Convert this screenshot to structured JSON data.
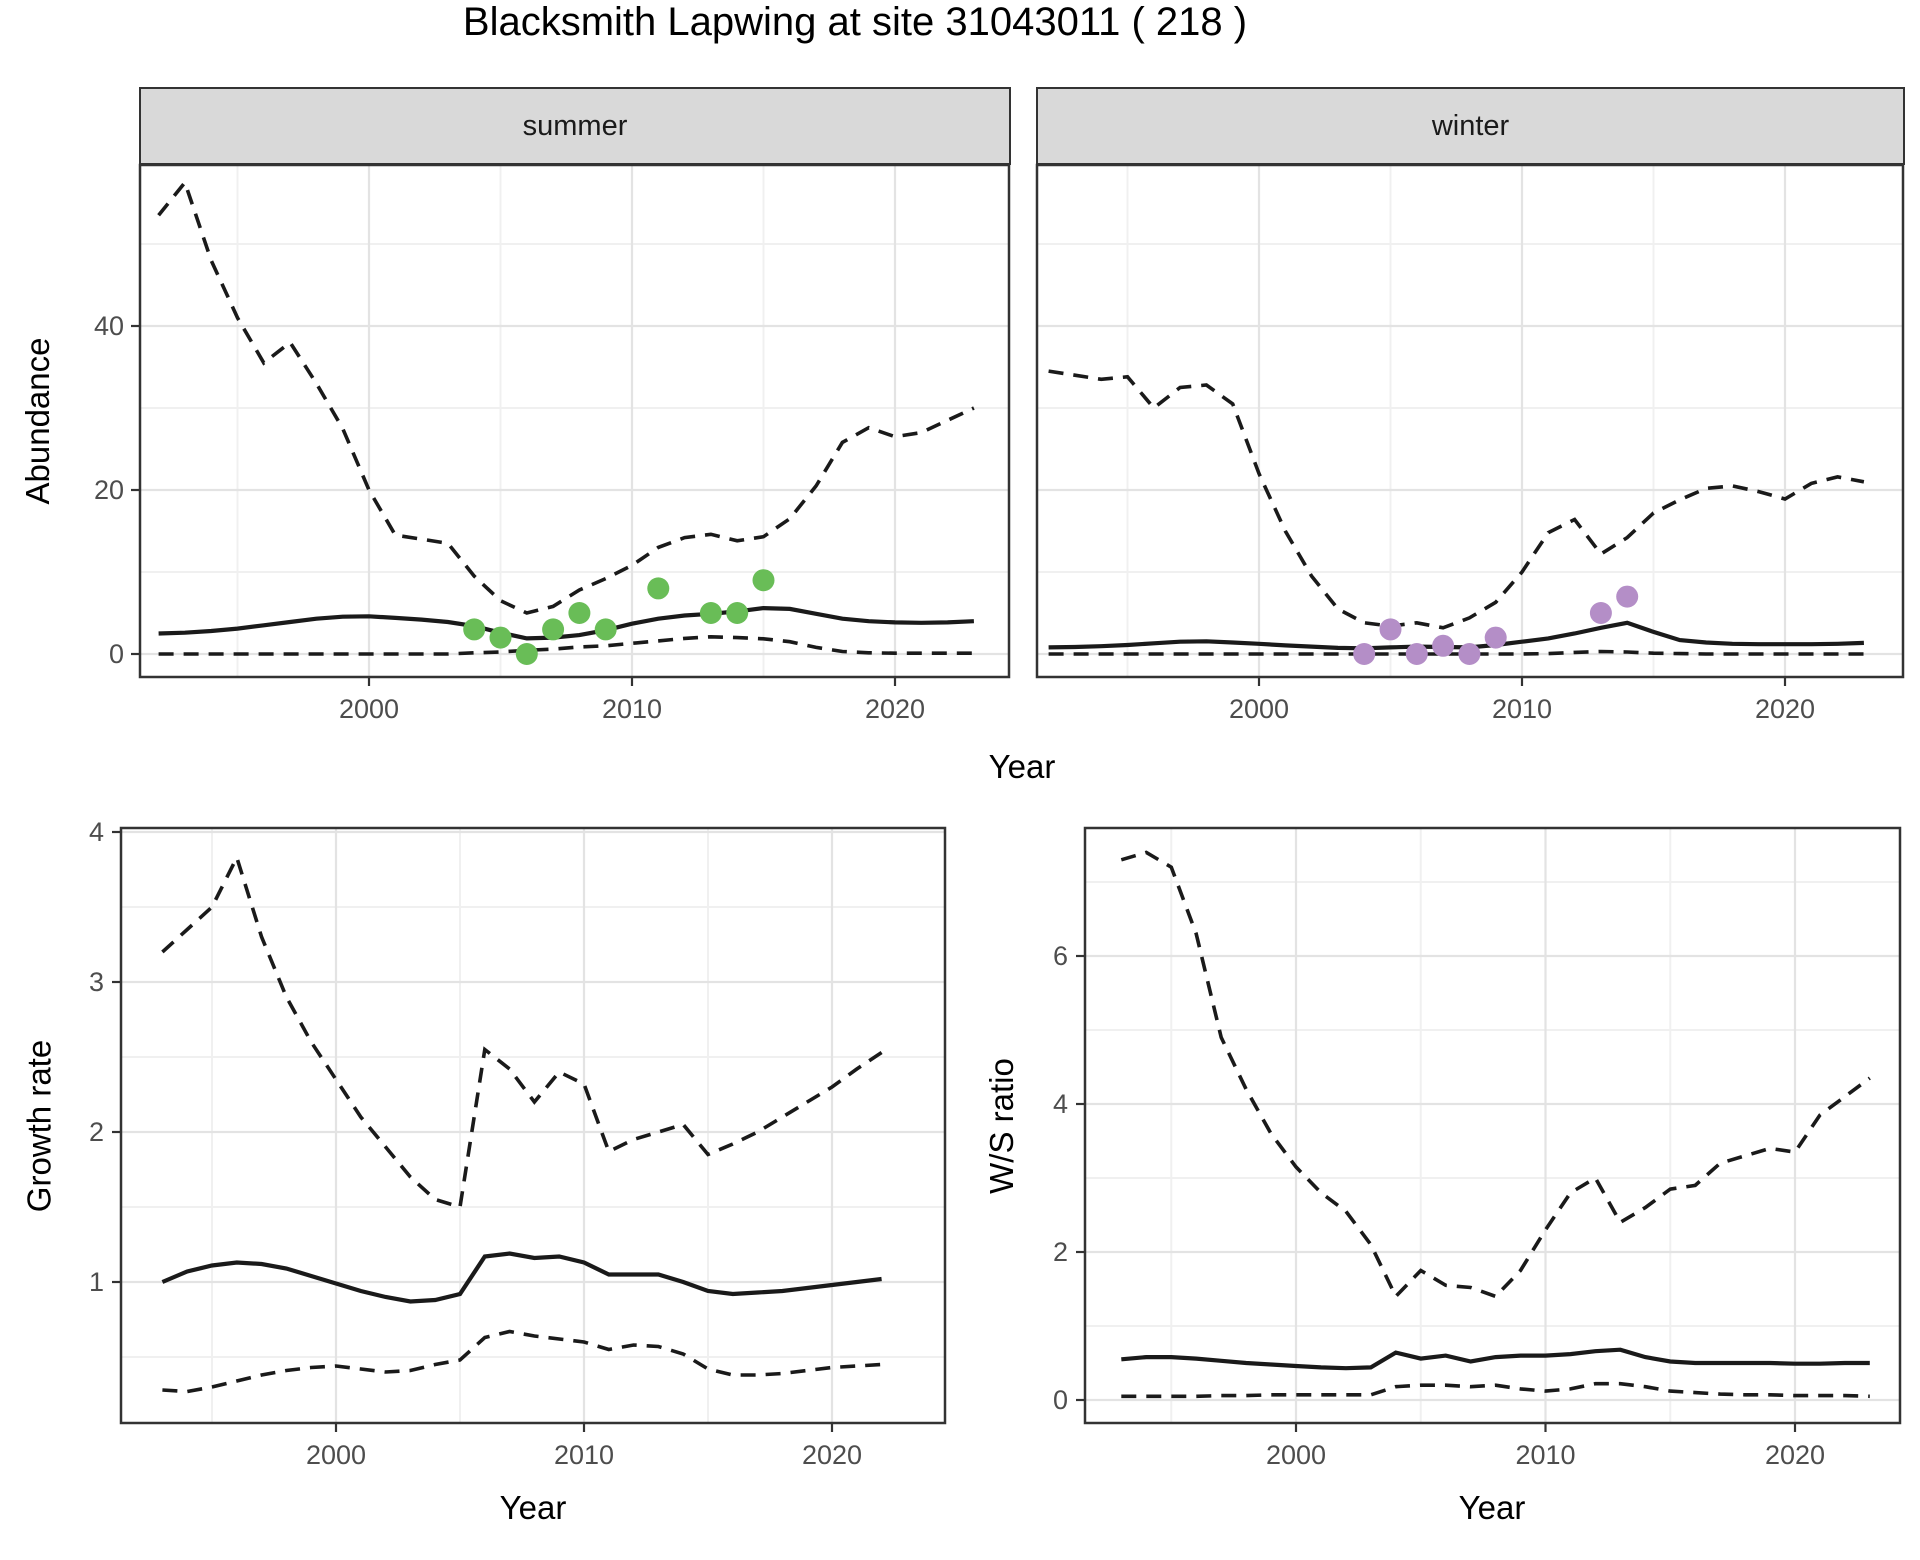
{
  "title": "Blacksmith Lapwing at site 31043011 ( 218 )",
  "facets": [
    "summer",
    "winter"
  ],
  "axis_titles": {
    "abundance": "Abundance",
    "year_top": "Year",
    "growth": "Growth rate",
    "year_bottom_left": "Year",
    "ws": "W/S ratio",
    "year_bottom_right": "Year"
  },
  "colors": {
    "summer_points": "#69bd57",
    "winter_points": "#b48ec7",
    "line": "#1a1a1a",
    "strip_bg": "#d9d9d9",
    "panel_border": "#333333",
    "grid_major": "#e3e3e3",
    "grid_minor": "#f0f0f0",
    "tick_text": "#4d4d4d"
  },
  "chart_data": [
    {
      "name": "abundance-summer",
      "type": "line",
      "facet": "summer",
      "title": "",
      "xlabel": "Year",
      "ylabel": "Abundance",
      "xlim": [
        1991.3,
        2024.3
      ],
      "ylim": [
        -2.8,
        59.6
      ],
      "x_ticks": [
        2000,
        2010,
        2020
      ],
      "y_ticks": [
        0,
        20,
        40
      ],
      "x_minor_gridlines": [
        1995,
        2005,
        2015
      ],
      "y_minor_gridlines": [
        10,
        30,
        50
      ],
      "line_styles": {
        "upper": "dashed",
        "median": "solid",
        "lower": "dashed"
      },
      "x": [
        1992,
        1993,
        1994,
        1995,
        1996,
        1997,
        1998,
        1999,
        2000,
        2001,
        2002,
        2003,
        2004,
        2005,
        2006,
        2007,
        2008,
        2009,
        2010,
        2011,
        2012,
        2013,
        2014,
        2015,
        2016,
        2017,
        2018,
        2019,
        2020,
        2021,
        2022,
        2023
      ],
      "upper": [
        53.5,
        57.5,
        48,
        41,
        35.5,
        38,
        33,
        27.5,
        20,
        14.5,
        14,
        13.5,
        9.5,
        6.5,
        5,
        5.8,
        7.8,
        9.2,
        10.8,
        13,
        14.2,
        14.6,
        13.8,
        14.3,
        16.5,
        20.5,
        25.8,
        27.6,
        26.5,
        27,
        28.5,
        30
      ],
      "median": [
        2.5,
        2.6,
        2.8,
        3.1,
        3.5,
        3.9,
        4.3,
        4.55,
        4.6,
        4.4,
        4.2,
        3.9,
        3.4,
        2.6,
        1.9,
        2.0,
        2.3,
        2.9,
        3.7,
        4.3,
        4.7,
        4.9,
        5.2,
        5.6,
        5.5,
        4.9,
        4.3,
        4.0,
        3.85,
        3.8,
        3.85,
        4.0
      ],
      "lower": [
        0,
        0,
        0,
        0,
        0,
        0,
        0,
        0,
        0,
        0,
        0,
        0,
        0.15,
        0.25,
        0.45,
        0.6,
        0.85,
        1.0,
        1.3,
        1.6,
        1.9,
        2.1,
        2.0,
        1.85,
        1.5,
        0.8,
        0.3,
        0.15,
        0.1,
        0.1,
        0.1,
        0.1
      ],
      "points": [
        [
          2004,
          3
        ],
        [
          2005,
          2
        ],
        [
          2006,
          0
        ],
        [
          2007,
          3
        ],
        [
          2008,
          5
        ],
        [
          2009,
          3
        ],
        [
          2011,
          8
        ],
        [
          2013,
          5
        ],
        [
          2014,
          5
        ],
        [
          2015,
          9
        ]
      ],
      "points_color_key": "summer_points"
    },
    {
      "name": "abundance-winter",
      "type": "line",
      "facet": "winter",
      "title": "",
      "xlabel": "Year",
      "ylabel": "Abundance",
      "xlim": [
        1991.3,
        2024.3
      ],
      "ylim": [
        -2.8,
        59.6
      ],
      "x_ticks": [
        2000,
        2010,
        2020
      ],
      "y_ticks": [],
      "x_minor_gridlines": [
        1995,
        2005,
        2015
      ],
      "y_minor_gridlines": [
        10,
        30,
        50
      ],
      "y_major_gridlines": [
        0,
        20,
        40
      ],
      "line_styles": {
        "upper": "dashed",
        "median": "solid",
        "lower": "dashed"
      },
      "x": [
        1992,
        1993,
        1994,
        1995,
        1996,
        1997,
        1998,
        1999,
        2000,
        2001,
        2002,
        2003,
        2004,
        2005,
        2006,
        2007,
        2008,
        2009,
        2010,
        2011,
        2012,
        2013,
        2014,
        2015,
        2016,
        2017,
        2018,
        2019,
        2020,
        2021,
        2022,
        2023
      ],
      "upper": [
        34.5,
        34,
        33.5,
        33.8,
        30,
        32.5,
        32.8,
        30.5,
        22,
        15,
        9.5,
        5.5,
        3.8,
        3.4,
        3.8,
        3.2,
        4.4,
        6.3,
        10,
        14.8,
        16.4,
        12.2,
        14.2,
        17.2,
        18.8,
        20.2,
        20.5,
        19.8,
        18.9,
        20.8,
        21.6,
        21
      ],
      "median": [
        0.8,
        0.85,
        0.95,
        1.1,
        1.3,
        1.5,
        1.55,
        1.4,
        1.25,
        1.05,
        0.9,
        0.75,
        0.7,
        0.8,
        0.9,
        0.85,
        0.8,
        1.1,
        1.5,
        1.9,
        2.5,
        3.2,
        3.8,
        2.7,
        1.7,
        1.4,
        1.25,
        1.2,
        1.2,
        1.2,
        1.25,
        1.35
      ],
      "lower": [
        0,
        0,
        0,
        0,
        0,
        0,
        0,
        0,
        0,
        0,
        0,
        0,
        0,
        0,
        0,
        0,
        0,
        0,
        0,
        0.05,
        0.2,
        0.3,
        0.25,
        0.1,
        0.05,
        0,
        0,
        0,
        0,
        0,
        0,
        0
      ],
      "points": [
        [
          2004,
          0
        ],
        [
          2005,
          3
        ],
        [
          2006,
          0
        ],
        [
          2007,
          1
        ],
        [
          2008,
          0
        ],
        [
          2009,
          2
        ],
        [
          2013,
          5
        ],
        [
          2014,
          7
        ]
      ],
      "points_color_key": "winter_points"
    },
    {
      "name": "growth-rate",
      "type": "line",
      "title": "",
      "xlabel": "Year",
      "ylabel": "Growth rate",
      "xlim": [
        1991.3,
        2024.6
      ],
      "ylim": [
        0.06,
        4.03
      ],
      "x_ticks": [
        2000,
        2010,
        2020
      ],
      "y_ticks": [
        1,
        2,
        3,
        4
      ],
      "x_minor_gridlines": [
        1995,
        2005,
        2015
      ],
      "y_minor_gridlines": [
        0.5,
        1.5,
        2.5,
        3.5
      ],
      "line_styles": {
        "upper": "dashed",
        "median": "solid",
        "lower": "dashed"
      },
      "x": [
        1993,
        1994,
        1995,
        1996,
        1997,
        1998,
        1999,
        2000,
        2001,
        2002,
        2003,
        2004,
        2005,
        2006,
        2007,
        2008,
        2009,
        2010,
        2011,
        2012,
        2013,
        2014,
        2015,
        2016,
        2017,
        2018,
        2019,
        2020,
        2021,
        2022
      ],
      "upper": [
        3.2,
        3.35,
        3.5,
        3.83,
        3.3,
        2.9,
        2.6,
        2.35,
        2.1,
        1.9,
        1.7,
        1.55,
        1.5,
        2.55,
        2.42,
        2.2,
        2.4,
        2.32,
        1.87,
        1.95,
        2.0,
        2.05,
        1.85,
        1.92,
        2.0,
        2.1,
        2.2,
        2.3,
        2.42,
        2.53
      ],
      "median": [
        1.0,
        1.07,
        1.11,
        1.13,
        1.12,
        1.09,
        1.04,
        0.99,
        0.94,
        0.9,
        0.87,
        0.88,
        0.92,
        1.17,
        1.19,
        1.16,
        1.17,
        1.13,
        1.05,
        1.05,
        1.05,
        1.0,
        0.94,
        0.92,
        0.93,
        0.94,
        0.96,
        0.98,
        1.0,
        1.02
      ],
      "lower": [
        0.28,
        0.27,
        0.3,
        0.34,
        0.38,
        0.41,
        0.43,
        0.44,
        0.42,
        0.4,
        0.41,
        0.45,
        0.48,
        0.63,
        0.67,
        0.64,
        0.62,
        0.6,
        0.55,
        0.58,
        0.57,
        0.52,
        0.42,
        0.38,
        0.38,
        0.39,
        0.41,
        0.43,
        0.44,
        0.45
      ],
      "points": []
    },
    {
      "name": "ws-ratio",
      "type": "line",
      "title": "",
      "xlabel": "Year",
      "ylabel": "W/S ratio",
      "xlim": [
        1991.5,
        2024.2
      ],
      "ylim": [
        -0.31,
        7.73
      ],
      "x_ticks": [
        2000,
        2010,
        2020
      ],
      "y_ticks": [
        0,
        2,
        4,
        6
      ],
      "x_minor_gridlines": [
        1995,
        2005,
        2015
      ],
      "y_minor_gridlines": [
        1,
        3,
        5,
        7
      ],
      "line_styles": {
        "upper": "dashed",
        "median": "solid",
        "lower": "dashed"
      },
      "x": [
        1993,
        1994,
        1995,
        1996,
        1997,
        1998,
        1999,
        2000,
        2001,
        2002,
        2003,
        2004,
        2005,
        2006,
        2007,
        2008,
        2009,
        2010,
        2011,
        2012,
        2013,
        2014,
        2015,
        2016,
        2017,
        2018,
        2019,
        2020,
        2021,
        2022,
        2023
      ],
      "upper": [
        7.3,
        7.4,
        7.2,
        6.3,
        4.9,
        4.2,
        3.6,
        3.15,
        2.8,
        2.55,
        2.1,
        1.4,
        1.75,
        1.55,
        1.52,
        1.4,
        1.75,
        2.3,
        2.8,
        3.0,
        2.4,
        2.6,
        2.85,
        2.9,
        3.2,
        3.3,
        3.4,
        3.35,
        3.85,
        4.1,
        4.35
      ],
      "median": [
        0.55,
        0.58,
        0.58,
        0.56,
        0.53,
        0.5,
        0.48,
        0.46,
        0.44,
        0.43,
        0.44,
        0.64,
        0.56,
        0.6,
        0.52,
        0.58,
        0.6,
        0.6,
        0.62,
        0.66,
        0.68,
        0.58,
        0.52,
        0.5,
        0.5,
        0.5,
        0.5,
        0.49,
        0.49,
        0.5,
        0.5
      ],
      "lower": [
        0.05,
        0.05,
        0.05,
        0.05,
        0.06,
        0.06,
        0.07,
        0.07,
        0.07,
        0.07,
        0.07,
        0.18,
        0.2,
        0.2,
        0.18,
        0.2,
        0.15,
        0.12,
        0.15,
        0.22,
        0.22,
        0.18,
        0.12,
        0.1,
        0.08,
        0.07,
        0.07,
        0.06,
        0.06,
        0.06,
        0.05
      ],
      "points": []
    }
  ]
}
